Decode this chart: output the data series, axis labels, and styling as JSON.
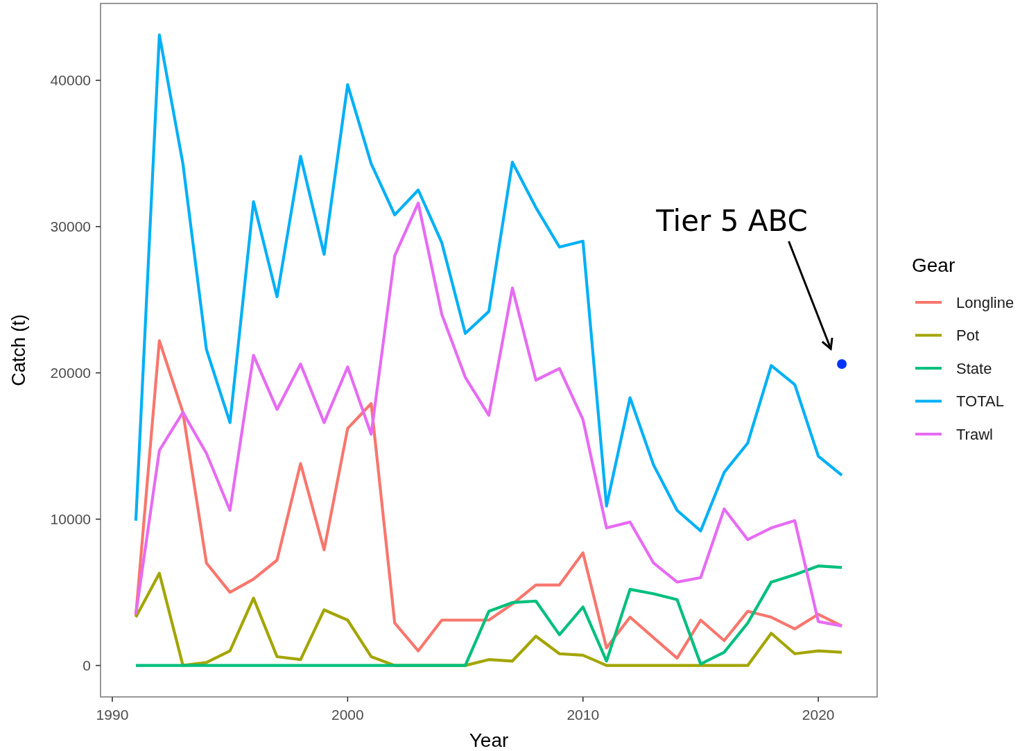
{
  "chart_data": {
    "type": "line",
    "xlabel": "Year",
    "ylabel": "Catch (t)",
    "legend_title": "Gear",
    "x": [
      1991,
      1992,
      1993,
      1994,
      1995,
      1996,
      1997,
      1998,
      1999,
      2000,
      2001,
      2002,
      2003,
      2004,
      2005,
      2006,
      2007,
      2008,
      2009,
      2010,
      2011,
      2012,
      2013,
      2014,
      2015,
      2016,
      2017,
      2018,
      2019,
      2020,
      2021
    ],
    "series": [
      {
        "name": "Longline",
        "color": "#f8766d",
        "values": [
          3400,
          22200,
          17300,
          7000,
          5000,
          5900,
          7200,
          13800,
          7900,
          16200,
          17900,
          2900,
          1000,
          3100,
          3100,
          3100,
          4200,
          5500,
          5500,
          7700,
          1200,
          3300,
          1900,
          500,
          3100,
          1700,
          3700,
          3300,
          2500,
          3500,
          2700
        ]
      },
      {
        "name": "Pot",
        "color": "#a3a500",
        "values": [
          3300,
          6300,
          0,
          200,
          1000,
          4600,
          600,
          400,
          3800,
          3100,
          600,
          0,
          0,
          0,
          0,
          400,
          300,
          2000,
          800,
          700,
          0,
          0,
          0,
          0,
          0,
          0,
          0,
          2200,
          800,
          1000,
          900
        ]
      },
      {
        "name": "State",
        "color": "#00bf7d",
        "values": [
          0,
          0,
          0,
          0,
          0,
          0,
          0,
          0,
          0,
          0,
          0,
          0,
          0,
          0,
          0,
          3700,
          4300,
          4400,
          2100,
          4000,
          300,
          5200,
          4900,
          4500,
          100,
          900,
          2900,
          5700,
          6200,
          6800,
          6700
        ]
      },
      {
        "name": "TOTAL",
        "color": "#00b0f6",
        "values": [
          9900,
          43100,
          34300,
          21600,
          16600,
          31700,
          25200,
          34800,
          28100,
          39700,
          34300,
          30800,
          32500,
          28900,
          22700,
          24200,
          34400,
          31300,
          28600,
          29000,
          10900,
          18300,
          13700,
          10600,
          9200,
          13200,
          15200,
          20500,
          19200,
          14300,
          13000
        ]
      },
      {
        "name": "Trawl",
        "color": "#e76bf3",
        "values": [
          3500,
          14700,
          17300,
          14500,
          10600,
          21200,
          17500,
          20600,
          16600,
          20400,
          15800,
          28000,
          31600,
          24000,
          19700,
          17100,
          25800,
          19500,
          20300,
          16800,
          9400,
          9800,
          7000,
          5700,
          6000,
          10700,
          8600,
          9400,
          9900,
          3000,
          2700
        ]
      },
      {
        "type": "scatter",
        "x": [
          2021
        ],
        "color": "#0033ff",
        "marker": "circle",
        "values": [
          20600
        ]
      }
    ],
    "xlim": [
      1989.5,
      2022.5
    ],
    "ylim": [
      -2150,
      45250
    ],
    "xticks": [
      1990,
      2000,
      2010,
      2020
    ],
    "yticks": [
      0,
      10000,
      20000,
      30000,
      40000
    ],
    "grid": false,
    "legend": "right",
    "annotations": [
      "Tier 5 ABC"
    ]
  }
}
